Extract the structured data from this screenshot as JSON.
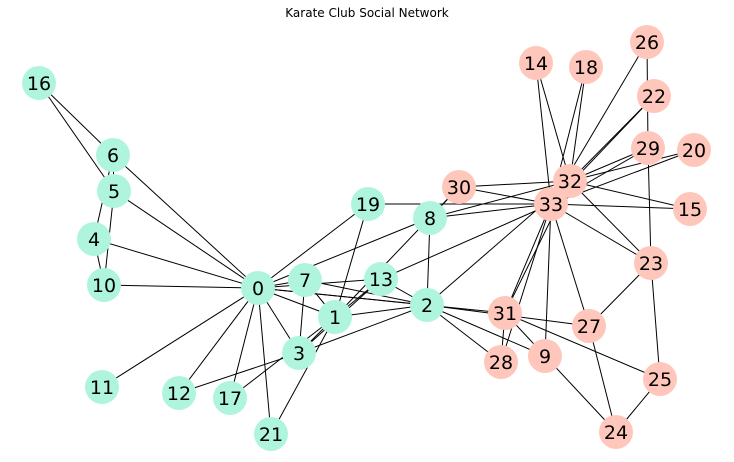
{
  "title": "Karate Club Social Network",
  "colors": {
    "group_a": "#aff5de",
    "group_b": "#ffc7bb",
    "edge": "#000000"
  },
  "nodes": [
    {
      "id": "0",
      "group": "a"
    },
    {
      "id": "1",
      "group": "a"
    },
    {
      "id": "2",
      "group": "a"
    },
    {
      "id": "3",
      "group": "a"
    },
    {
      "id": "4",
      "group": "a"
    },
    {
      "id": "5",
      "group": "a"
    },
    {
      "id": "6",
      "group": "a"
    },
    {
      "id": "7",
      "group": "a"
    },
    {
      "id": "8",
      "group": "a"
    },
    {
      "id": "9",
      "group": "b"
    },
    {
      "id": "10",
      "group": "a"
    },
    {
      "id": "11",
      "group": "a"
    },
    {
      "id": "12",
      "group": "a"
    },
    {
      "id": "13",
      "group": "a"
    },
    {
      "id": "14",
      "group": "b"
    },
    {
      "id": "15",
      "group": "b"
    },
    {
      "id": "16",
      "group": "a"
    },
    {
      "id": "17",
      "group": "a"
    },
    {
      "id": "18",
      "group": "b"
    },
    {
      "id": "19",
      "group": "a"
    },
    {
      "id": "20",
      "group": "b"
    },
    {
      "id": "21",
      "group": "a"
    },
    {
      "id": "22",
      "group": "b"
    },
    {
      "id": "23",
      "group": "b"
    },
    {
      "id": "24",
      "group": "b"
    },
    {
      "id": "25",
      "group": "b"
    },
    {
      "id": "26",
      "group": "b"
    },
    {
      "id": "27",
      "group": "b"
    },
    {
      "id": "28",
      "group": "b"
    },
    {
      "id": "29",
      "group": "b"
    },
    {
      "id": "30",
      "group": "b"
    },
    {
      "id": "31",
      "group": "b"
    },
    {
      "id": "32",
      "group": "b"
    },
    {
      "id": "33",
      "group": "b"
    }
  ],
  "edges": [
    [
      "0",
      "1"
    ],
    [
      "0",
      "2"
    ],
    [
      "0",
      "3"
    ],
    [
      "0",
      "4"
    ],
    [
      "0",
      "5"
    ],
    [
      "0",
      "6"
    ],
    [
      "0",
      "7"
    ],
    [
      "0",
      "8"
    ],
    [
      "0",
      "10"
    ],
    [
      "0",
      "11"
    ],
    [
      "0",
      "12"
    ],
    [
      "0",
      "13"
    ],
    [
      "0",
      "17"
    ],
    [
      "0",
      "19"
    ],
    [
      "0",
      "21"
    ],
    [
      "0",
      "31"
    ],
    [
      "1",
      "2"
    ],
    [
      "1",
      "3"
    ],
    [
      "1",
      "7"
    ],
    [
      "1",
      "13"
    ],
    [
      "1",
      "17"
    ],
    [
      "1",
      "19"
    ],
    [
      "1",
      "21"
    ],
    [
      "1",
      "30"
    ],
    [
      "2",
      "3"
    ],
    [
      "2",
      "7"
    ],
    [
      "2",
      "8"
    ],
    [
      "2",
      "9"
    ],
    [
      "2",
      "13"
    ],
    [
      "2",
      "27"
    ],
    [
      "2",
      "28"
    ],
    [
      "2",
      "32"
    ],
    [
      "3",
      "7"
    ],
    [
      "3",
      "12"
    ],
    [
      "3",
      "13"
    ],
    [
      "4",
      "6"
    ],
    [
      "4",
      "10"
    ],
    [
      "5",
      "6"
    ],
    [
      "5",
      "10"
    ],
    [
      "5",
      "16"
    ],
    [
      "6",
      "16"
    ],
    [
      "8",
      "30"
    ],
    [
      "8",
      "32"
    ],
    [
      "8",
      "33"
    ],
    [
      "9",
      "33"
    ],
    [
      "13",
      "33"
    ],
    [
      "14",
      "32"
    ],
    [
      "14",
      "33"
    ],
    [
      "15",
      "32"
    ],
    [
      "15",
      "33"
    ],
    [
      "18",
      "32"
    ],
    [
      "18",
      "33"
    ],
    [
      "19",
      "33"
    ],
    [
      "20",
      "32"
    ],
    [
      "20",
      "33"
    ],
    [
      "22",
      "32"
    ],
    [
      "22",
      "33"
    ],
    [
      "23",
      "25"
    ],
    [
      "23",
      "27"
    ],
    [
      "23",
      "29"
    ],
    [
      "23",
      "32"
    ],
    [
      "23",
      "33"
    ],
    [
      "24",
      "25"
    ],
    [
      "24",
      "27"
    ],
    [
      "24",
      "31"
    ],
    [
      "25",
      "31"
    ],
    [
      "26",
      "29"
    ],
    [
      "26",
      "33"
    ],
    [
      "27",
      "33"
    ],
    [
      "28",
      "31"
    ],
    [
      "28",
      "33"
    ],
    [
      "29",
      "32"
    ],
    [
      "29",
      "33"
    ],
    [
      "30",
      "32"
    ],
    [
      "30",
      "33"
    ],
    [
      "31",
      "32"
    ],
    [
      "31",
      "33"
    ],
    [
      "32",
      "33"
    ]
  ]
}
